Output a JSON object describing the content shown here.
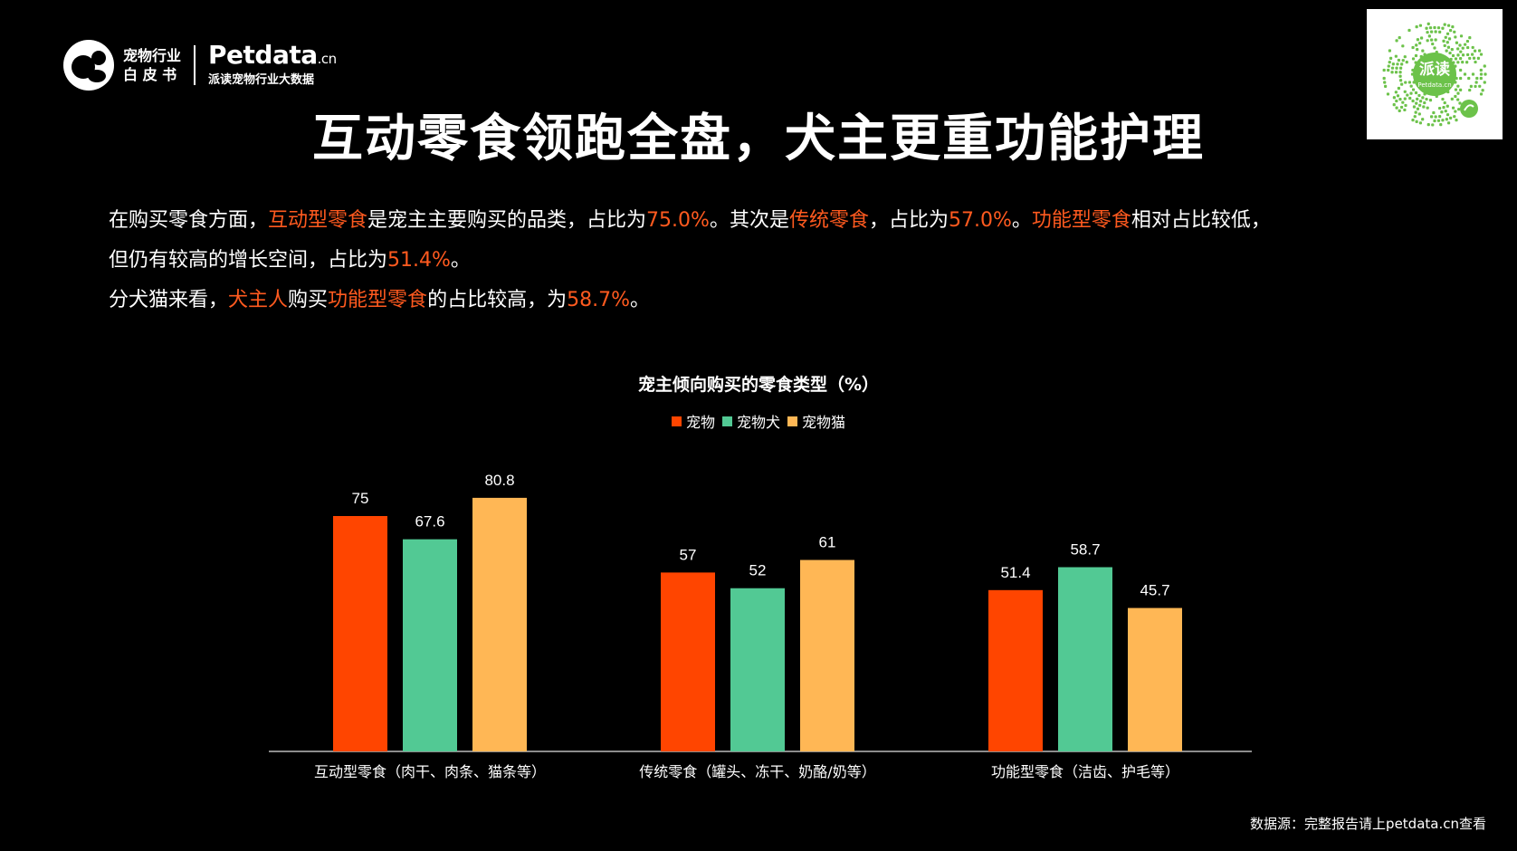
{
  "logo": {
    "cn_line1": "宠物行业",
    "cn_line2": "白 皮 书",
    "brand": "Petdata",
    "brand_suffix": ".cn",
    "subtitle": "派读宠物行业大数据"
  },
  "qr": {
    "label": "派读",
    "sub": "Petdata.cn"
  },
  "title": "互动零食领跑全盘，犬主更重功能护理",
  "description": {
    "line1": [
      {
        "t": "在购买零食方面，",
        "h": false
      },
      {
        "t": "互动型零食",
        "h": true
      },
      {
        "t": "是宠主主要购买的品类，占比为",
        "h": false
      },
      {
        "t": "75.0%",
        "h": true
      },
      {
        "t": "。其次是",
        "h": false
      },
      {
        "t": "传统零食",
        "h": true
      },
      {
        "t": "，占比为",
        "h": false
      },
      {
        "t": "57.0%",
        "h": true
      },
      {
        "t": "。",
        "h": false
      },
      {
        "t": "功能型零食",
        "h": true
      },
      {
        "t": "相对占比较低，",
        "h": false
      }
    ],
    "line2": [
      {
        "t": "但仍有较高的增长空间，占比为",
        "h": false
      },
      {
        "t": "51.4%",
        "h": true
      },
      {
        "t": "。",
        "h": false
      }
    ],
    "line3": [
      {
        "t": "分犬猫来看，",
        "h": false
      },
      {
        "t": "犬主人",
        "h": true
      },
      {
        "t": "购买",
        "h": false
      },
      {
        "t": "功能型零食",
        "h": true
      },
      {
        "t": "的占比较高，为",
        "h": false
      },
      {
        "t": "58.7%",
        "h": true
      },
      {
        "t": "。",
        "h": false
      }
    ]
  },
  "chart_data": {
    "type": "bar",
    "title": "宠主倾向购买的零食类型（%）",
    "categories": [
      "互动型零食（肉干、肉条、猫条等）",
      "传统零食（罐头、冻干、奶酪/奶等）",
      "功能型零食（洁齿、护毛等）"
    ],
    "series": [
      {
        "name": "宠物",
        "color": "#ff4500",
        "values": [
          75,
          57,
          51.4
        ]
      },
      {
        "name": "宠物犬",
        "color": "#52c994",
        "values": [
          67.6,
          52,
          58.7
        ]
      },
      {
        "name": "宠物猫",
        "color": "#ffb755",
        "values": [
          80.8,
          61,
          45.7
        ]
      }
    ],
    "data_labels": [
      [
        "75",
        "57",
        "51.4"
      ],
      [
        "67.6",
        "52",
        "58.7"
      ],
      [
        "80.8",
        "61",
        "45.7"
      ]
    ],
    "ylim": [
      0,
      90
    ],
    "grid": false,
    "legend_position": "top-center"
  },
  "source": "数据源：完整报告请上petdata.cn查看"
}
